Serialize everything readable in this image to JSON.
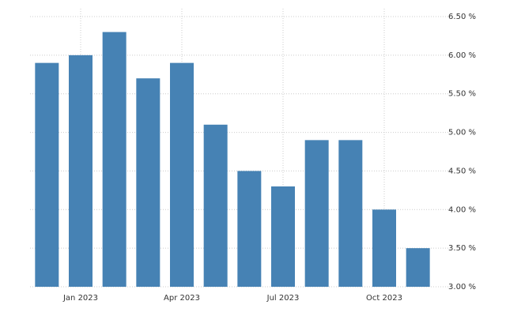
{
  "chart_data": {
    "type": "bar",
    "categories": [
      null,
      "Jan 2023",
      null,
      null,
      "Apr 2023",
      null,
      null,
      "Jul 2023",
      null,
      null,
      "Oct 2023",
      null
    ],
    "values": [
      5.9,
      6.0,
      6.3,
      5.7,
      5.9,
      5.1,
      4.5,
      4.3,
      4.9,
      4.9,
      4.0,
      3.5
    ],
    "color": "#4682b4",
    "ylim": [
      3,
      6.5
    ],
    "yticks": [
      {
        "value": 3,
        "label": "3.00 %"
      },
      {
        "value": 3.5,
        "label": "3.50 %"
      },
      {
        "value": 4,
        "label": "4.00 %"
      },
      {
        "value": 4.5,
        "label": "4.50 %"
      },
      {
        "value": 5,
        "label": "5.00 %"
      },
      {
        "value": 5.5,
        "label": "5.50 %"
      },
      {
        "value": 6,
        "label": "6.00 %"
      },
      {
        "value": 6.5,
        "label": "6.50 %"
      }
    ],
    "grid": true
  }
}
